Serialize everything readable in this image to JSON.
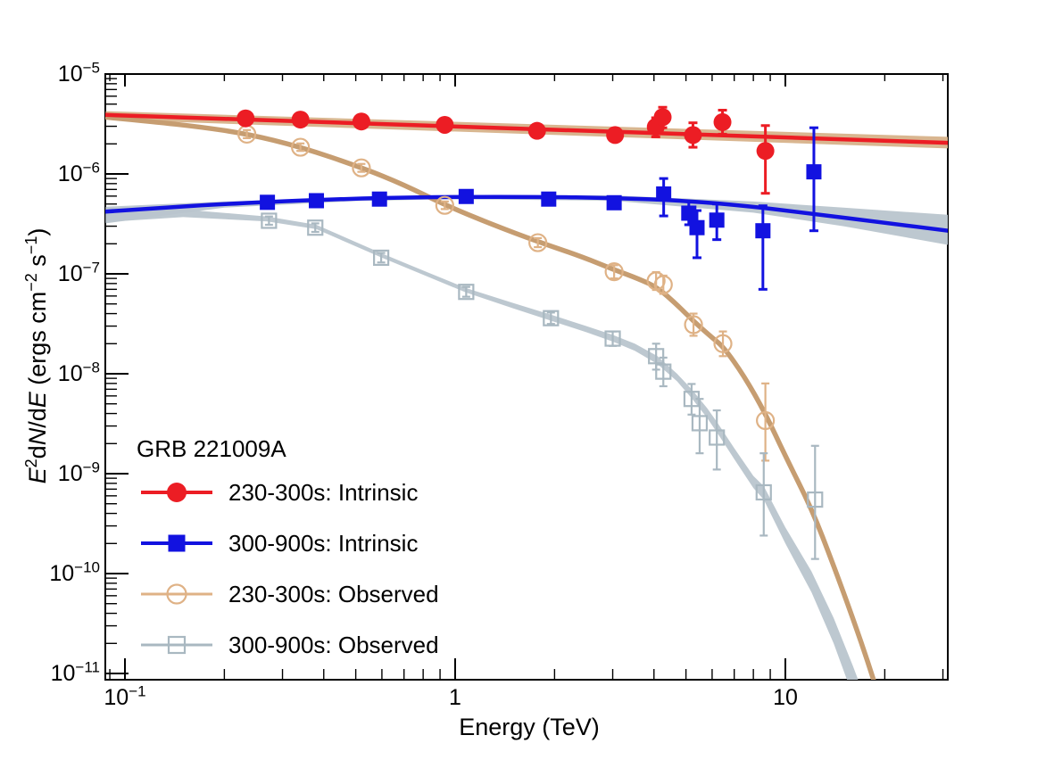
{
  "figure": {
    "kind": "scientific-spectrum-plot",
    "background": "#ffffff"
  },
  "chart_data": {
    "type": "scatter",
    "xscale": "log",
    "yscale": "log",
    "title": "",
    "annotation": "GRB 221009A",
    "xlabel": "Energy (TeV)",
    "ylabel": "E^2 dN/dE (ergs cm^-2 s^-1)",
    "ylabel_segments": [
      {
        "t": "E",
        "it": 1
      },
      {
        "t": "2",
        "sup": 1
      },
      {
        "t": "d"
      },
      {
        "t": "N",
        "it": 1
      },
      {
        "t": "/d"
      },
      {
        "t": "E",
        "it": 1
      },
      {
        "t": " (ergs cm"
      },
      {
        "t": "−2",
        "sup": 1
      },
      {
        "t": " s"
      },
      {
        "t": "−1",
        "sup": 1
      },
      {
        "t": ")"
      }
    ],
    "xlim": [
      0.0874,
      31.1
    ],
    "ylim": [
      8.8e-12,
      1e-05
    ],
    "grid": false,
    "legend_position": "lower-left",
    "x_ticks": [
      {
        "base": "10",
        "exp": "−1",
        "value": 0.1
      },
      {
        "base": "1",
        "exp": "",
        "value": 1
      },
      {
        "base": "10",
        "exp": "",
        "value": 10
      }
    ],
    "y_tick_exponents": [
      -5,
      -6,
      -7,
      -8,
      -9,
      -10,
      -11
    ],
    "colors": {
      "red": "#ec1d24",
      "blue": "#1212e0",
      "tan_marker": "#dfb286",
      "tan_curve": "#c69d71",
      "tan_band": "#d7b28a",
      "gray_marker": "#a9b8c1",
      "gray_band": "#b9c5cd",
      "axis": "#000000"
    },
    "point_format": [
      "x_tev",
      "y",
      "y_err_lo",
      "y_err_hi"
    ],
    "series": [
      {
        "name": "230-300s: Intrinsic",
        "marker": "filled-circle",
        "color_key": "red",
        "zorder": 3,
        "points": [
          [
            0.232,
            3.6e-06,
            3.25e-06,
            4e-06
          ],
          [
            0.34,
            3.5e-06,
            3.2e-06,
            3.85e-06
          ],
          [
            0.52,
            3.35e-06,
            3.05e-06,
            3.7e-06
          ],
          [
            0.93,
            3.1e-06,
            2.85e-06,
            3.4e-06
          ],
          [
            1.77,
            2.7e-06,
            2.45e-06,
            3e-06
          ],
          [
            3.05,
            2.45e-06,
            2.2e-06,
            2.75e-06
          ],
          [
            4.05,
            2.95e-06,
            2.35e-06,
            3.65e-06
          ],
          [
            4.25,
            3.7e-06,
            2.9e-06,
            4.65e-06
          ],
          [
            5.25,
            2.45e-06,
            1.85e-06,
            3.25e-06
          ],
          [
            6.45,
            3.3e-06,
            2.5e-06,
            4.35e-06
          ],
          [
            8.7,
            1.7e-06,
            6.4e-07,
            3.05e-06
          ]
        ]
      },
      {
        "name": "300-900s: Intrinsic",
        "marker": "filled-square",
        "color_key": "blue",
        "zorder": 4,
        "points": [
          [
            0.27,
            5.2e-07,
            4.85e-07,
            5.6e-07
          ],
          [
            0.38,
            5.4e-07,
            5.05e-07,
            5.8e-07
          ],
          [
            0.59,
            5.6e-07,
            5.2e-07,
            6e-07
          ],
          [
            1.08,
            5.95e-07,
            5.5e-07,
            6.4e-07
          ],
          [
            1.92,
            5.6e-07,
            5.15e-07,
            6.1e-07
          ],
          [
            3.03,
            5.15e-07,
            4.7e-07,
            5.7e-07
          ],
          [
            4.28,
            6.3e-07,
            3.8e-07,
            9e-07
          ],
          [
            5.1,
            4.05e-07,
            3.1e-07,
            5.3e-07
          ],
          [
            5.4,
            2.9e-07,
            1.45e-07,
            4.3e-07
          ],
          [
            6.2,
            3.45e-07,
            2.2e-07,
            5e-07
          ],
          [
            8.55,
            2.7e-07,
            7e-08,
            4.8e-07
          ],
          [
            12.2,
            1.05e-06,
            2.7e-07,
            2.9e-06
          ]
        ]
      },
      {
        "name": "230-300s: Observed",
        "marker": "open-circle",
        "color_key": "tan_marker",
        "zorder": 1,
        "points": [
          [
            0.234,
            2.5e-06,
            2.28e-06,
            2.75e-06
          ],
          [
            0.34,
            1.85e-06,
            1.7e-06,
            2.02e-06
          ],
          [
            0.52,
            1.15e-06,
            1.05e-06,
            1.26e-06
          ],
          [
            0.93,
            4.85e-07,
            4.45e-07,
            5.3e-07
          ],
          [
            1.78,
            2.05e-07,
            1.85e-07,
            2.28e-07
          ],
          [
            3.03,
            1.05e-07,
            9e-08,
            1.22e-07
          ],
          [
            4.06,
            8.5e-08,
            6.9e-08,
            1.04e-07
          ],
          [
            4.27,
            7.8e-08,
            6.3e-08,
            9.6e-08
          ],
          [
            5.27,
            3.1e-08,
            2.4e-08,
            4e-08
          ],
          [
            6.47,
            2e-08,
            1.5e-08,
            2.65e-08
          ],
          [
            8.7,
            3.4e-09,
            1.35e-09,
            8e-09
          ]
        ]
      },
      {
        "name": "300-900s: Observed",
        "marker": "open-square",
        "color_key": "gray_marker",
        "zorder": 2,
        "points": [
          [
            0.273,
            3.4e-07,
            3.1e-07,
            3.75e-07
          ],
          [
            0.377,
            2.9e-07,
            2.63e-07,
            3.2e-07
          ],
          [
            0.597,
            1.45e-07,
            1.3e-07,
            1.62e-07
          ],
          [
            1.08,
            6.6e-08,
            5.9e-08,
            7.4e-08
          ],
          [
            1.95,
            3.6e-08,
            3.15e-08,
            4.1e-08
          ],
          [
            3.0,
            2.25e-08,
            1.9e-08,
            2.65e-08
          ],
          [
            4.06,
            1.5e-08,
            1.1e-08,
            2e-08
          ],
          [
            4.27,
            1.05e-08,
            7.5e-09,
            1.45e-08
          ],
          [
            5.2,
            5.6e-09,
            3.9e-09,
            7.9e-09
          ],
          [
            5.5,
            3.2e-09,
            1.6e-09,
            5.6e-09
          ],
          [
            6.2,
            2.3e-09,
            1.1e-09,
            4.3e-09
          ],
          [
            8.6,
            6.5e-10,
            2.4e-10,
            1.6e-09
          ],
          [
            12.3,
            5.5e-10,
            1.4e-10,
            1.9e-09
          ]
        ]
      }
    ],
    "curves": [
      {
        "name": "intrinsic-230-300s-uncertainty-band",
        "kind": "band",
        "color_key": "tan_band",
        "lower": [
          [
            0.0874,
            3.5e-06
          ],
          [
            31.1,
            1.8e-06
          ]
        ],
        "upper": [
          [
            0.0874,
            4.25e-06
          ],
          [
            31.1,
            2.35e-06
          ]
        ]
      },
      {
        "name": "intrinsic-300-900s-uncertainty-band",
        "kind": "band",
        "color_key": "gray_band",
        "lower": [
          [
            0.0874,
            3.2e-07
          ],
          [
            0.2,
            4.6e-07
          ],
          [
            0.5,
            5.35e-07
          ],
          [
            1.0,
            5.6e-07
          ],
          [
            3.0,
            5.4e-07
          ],
          [
            8.0,
            4.1e-07
          ],
          [
            15.0,
            3e-07
          ],
          [
            31.1,
            1.95e-07
          ]
        ],
        "upper": [
          [
            0.0874,
            4.7e-07
          ],
          [
            0.2,
            5.3e-07
          ],
          [
            0.5,
            5.8e-07
          ],
          [
            1.0,
            6.15e-07
          ],
          [
            3.0,
            6.1e-07
          ],
          [
            8.0,
            5.3e-07
          ],
          [
            15.0,
            4.6e-07
          ],
          [
            31.1,
            3.9e-07
          ]
        ]
      },
      {
        "name": "observed-230-300s-model",
        "kind": "line",
        "color_key": "tan_curve",
        "width": 5.5,
        "points": [
          [
            0.0874,
            3.7e-06
          ],
          [
            0.12,
            3.35e-06
          ],
          [
            0.17,
            2.95e-06
          ],
          [
            0.234,
            2.52e-06
          ],
          [
            0.34,
            1.87e-06
          ],
          [
            0.52,
            1.16e-06
          ],
          [
            0.7,
            7.8e-07
          ],
          [
            0.93,
            4.9e-07
          ],
          [
            1.3,
            3.1e-07
          ],
          [
            1.78,
            2.1e-07
          ],
          [
            2.4,
            1.5e-07
          ],
          [
            3.03,
            1.1e-07
          ],
          [
            3.6,
            8.9e-08
          ],
          [
            4.1,
            7.3e-08
          ],
          [
            4.7,
            4.9e-08
          ],
          [
            5.3,
            3.3e-08
          ],
          [
            6.0,
            2.3e-08
          ],
          [
            6.5,
            1.85e-08
          ],
          [
            7.5,
            9.5e-09
          ],
          [
            8.7,
            4e-09
          ],
          [
            10.0,
            1.5e-09
          ],
          [
            12.0,
            4.5e-10
          ],
          [
            14.0,
            1.2e-10
          ],
          [
            16.0,
            3.6e-11
          ],
          [
            18.0,
            1.15e-11
          ],
          [
            20.0,
            3.8e-12
          ]
        ]
      },
      {
        "name": "observed-300-900s-model-band",
        "kind": "band",
        "color_key": "gray_band",
        "lower": [
          [
            0.0874,
            3.3e-07
          ],
          [
            0.15,
            3.7e-07
          ],
          [
            0.27,
            3.35e-07
          ],
          [
            0.38,
            2.8e-07
          ],
          [
            0.6,
            1.45e-07
          ],
          [
            0.8,
            9.8e-08
          ],
          [
            1.08,
            6.5e-08
          ],
          [
            1.5,
            4.5e-08
          ],
          [
            1.95,
            3.4e-08
          ],
          [
            2.5,
            2.6e-08
          ],
          [
            3.0,
            2.1e-08
          ],
          [
            3.5,
            1.7e-08
          ],
          [
            4.1,
            1.25e-08
          ],
          [
            4.7,
            8.4e-09
          ],
          [
            5.2,
            5.7e-09
          ],
          [
            5.8,
            3.6e-09
          ],
          [
            6.2,
            2.6e-09
          ],
          [
            7.0,
            1.4e-09
          ],
          [
            8.0,
            7.2e-10
          ],
          [
            8.6,
            5.5e-10
          ],
          [
            10.0,
            2e-10
          ],
          [
            12.0,
            6.5e-11
          ],
          [
            14.0,
            2e-11
          ],
          [
            16.0,
            6e-12
          ],
          [
            17.5,
            2.5e-12
          ]
        ],
        "upper": [
          [
            0.0874,
            4.5e-07
          ],
          [
            0.15,
            4.4e-07
          ],
          [
            0.27,
            3.75e-07
          ],
          [
            0.38,
            3.1e-07
          ],
          [
            0.6,
            1.6e-07
          ],
          [
            0.8,
            1.08e-07
          ],
          [
            1.08,
            7.2e-08
          ],
          [
            1.5,
            5.1e-08
          ],
          [
            1.95,
            3.9e-08
          ],
          [
            2.5,
            3e-08
          ],
          [
            3.0,
            2.45e-08
          ],
          [
            3.5,
            2e-08
          ],
          [
            4.1,
            1.5e-08
          ],
          [
            4.7,
            1e-08
          ],
          [
            5.2,
            7e-09
          ],
          [
            5.8,
            4.5e-09
          ],
          [
            6.2,
            3.3e-09
          ],
          [
            7.0,
            1.8e-09
          ],
          [
            8.0,
            9.5e-10
          ],
          [
            8.6,
            7.5e-10
          ],
          [
            10.0,
            2.9e-10
          ],
          [
            12.0,
            1.05e-10
          ],
          [
            14.0,
            3.6e-11
          ],
          [
            16.0,
            1.2e-11
          ],
          [
            17.5,
            5.5e-12
          ]
        ]
      },
      {
        "name": "intrinsic-230-300s-fit",
        "kind": "line",
        "color_key": "red",
        "width": 4.5,
        "points": [
          [
            0.0874,
            3.9e-06
          ],
          [
            31.1,
            2.05e-06
          ]
        ]
      },
      {
        "name": "intrinsic-300-900s-fit",
        "kind": "line",
        "color_key": "blue",
        "width": 4.5,
        "points": [
          [
            0.0874,
            4.2e-07
          ],
          [
            0.13,
            4.6e-07
          ],
          [
            0.2,
            5e-07
          ],
          [
            0.35,
            5.45e-07
          ],
          [
            0.6,
            5.75e-07
          ],
          [
            1.0,
            5.9e-07
          ],
          [
            1.8,
            5.9e-07
          ],
          [
            3.0,
            5.75e-07
          ],
          [
            5.0,
            5.4e-07
          ],
          [
            8.0,
            4.7e-07
          ],
          [
            12.0,
            4e-07
          ],
          [
            20.0,
            3.25e-07
          ],
          [
            31.1,
            2.7e-07
          ]
        ]
      }
    ]
  }
}
